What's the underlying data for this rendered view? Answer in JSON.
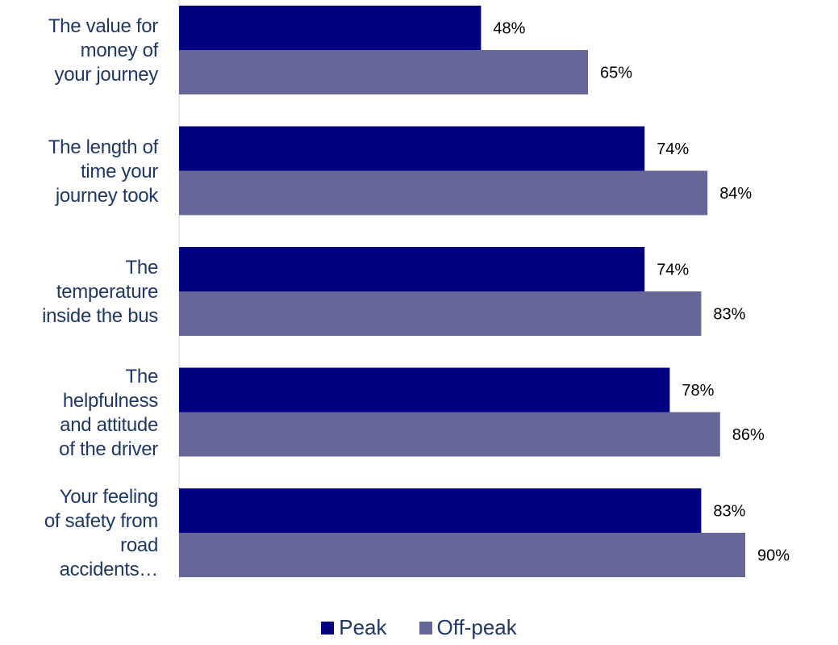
{
  "chart_data": {
    "type": "bar",
    "orientation": "horizontal",
    "categories": [
      "The value for money of your journey",
      "The length of time your journey took",
      "The temperature inside the bus",
      "The helpfulness and attitude of the driver",
      "Your feeling of safety from road accidents…"
    ],
    "category_lines": [
      [
        "The value for",
        "money of",
        "your journey"
      ],
      [
        "The length of",
        "time your",
        "journey took"
      ],
      [
        "The",
        "temperature",
        "inside the bus"
      ],
      [
        "The",
        "helpfulness",
        "and attitude",
        "of the driver"
      ],
      [
        "Your feeling",
        "of safety from",
        "road",
        "accidents…"
      ]
    ],
    "series": [
      {
        "name": "Peak",
        "color": "#000080",
        "values": [
          48,
          74,
          74,
          78,
          83
        ],
        "labels": [
          "48%",
          "74%",
          "74%",
          "78%",
          "83%"
        ]
      },
      {
        "name": "Off-peak",
        "color": "#666699",
        "values": [
          65,
          84,
          83,
          86,
          90
        ],
        "labels": [
          "65%",
          "84%",
          "83%",
          "86%",
          "90%"
        ]
      }
    ],
    "xlim": [
      0,
      100
    ],
    "grid": false,
    "legend_position": "bottom"
  }
}
